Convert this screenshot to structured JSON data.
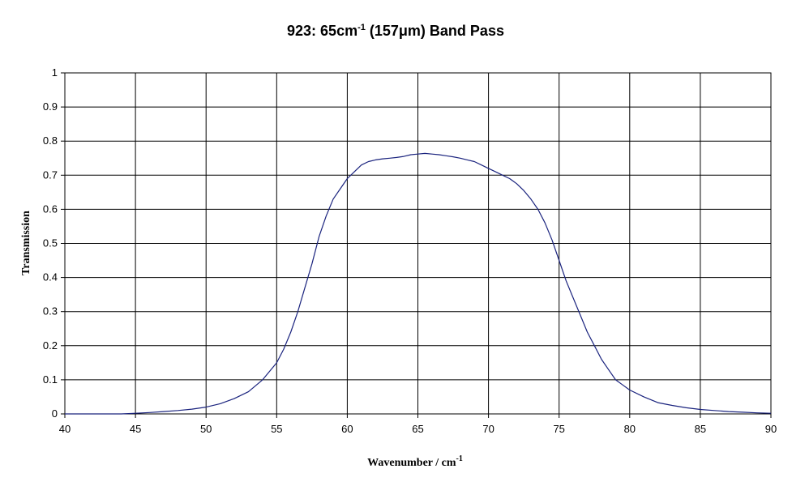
{
  "chart_data": {
    "type": "line",
    "title": {
      "prefix": "923: 65cm",
      "sup": "-1",
      "middle": " (157",
      "mu": "μ",
      "suffix": "m) Band Pass"
    },
    "xlabel": {
      "text": "Wavenumber / cm",
      "sup": "-1"
    },
    "ylabel": "Transmission",
    "xlim": [
      40,
      90
    ],
    "ylim": [
      0,
      1
    ],
    "x_ticks": [
      "40",
      "45",
      "50",
      "55",
      "60",
      "65",
      "70",
      "75",
      "80",
      "85",
      "90"
    ],
    "y_ticks": [
      "0",
      "0.1",
      "0.2",
      "0.3",
      "0.4",
      "0.5",
      "0.6",
      "0.7",
      "0.8",
      "0.9",
      "1"
    ],
    "grid": true,
    "legend": "none",
    "series": [
      {
        "color": "#1a237e",
        "x": [
          40,
          42,
          44,
          45,
          46,
          47,
          48,
          49,
          50,
          51,
          52,
          53,
          54,
          55,
          55.5,
          56,
          56.5,
          57,
          57.5,
          58,
          58.5,
          59,
          59.5,
          60,
          60.5,
          61,
          61.5,
          62,
          62.5,
          63,
          63.5,
          64,
          64.5,
          65,
          65.5,
          66,
          66.5,
          67,
          67.5,
          68,
          68.5,
          69,
          69.5,
          70,
          70.5,
          71,
          71.5,
          72,
          72.5,
          73,
          73.5,
          74,
          74.5,
          75,
          75.5,
          76,
          76.5,
          77,
          77.5,
          78,
          78.5,
          79,
          79.5,
          80,
          81,
          82,
          83,
          84,
          85,
          86,
          87,
          88,
          89,
          90
        ],
        "y": [
          0.0,
          0.0,
          0.0,
          0.002,
          0.004,
          0.007,
          0.01,
          0.014,
          0.02,
          0.03,
          0.045,
          0.065,
          0.1,
          0.15,
          0.19,
          0.24,
          0.3,
          0.37,
          0.44,
          0.52,
          0.58,
          0.63,
          0.66,
          0.69,
          0.71,
          0.73,
          0.74,
          0.745,
          0.748,
          0.75,
          0.752,
          0.755,
          0.76,
          0.762,
          0.764,
          0.762,
          0.76,
          0.757,
          0.754,
          0.75,
          0.745,
          0.74,
          0.73,
          0.72,
          0.71,
          0.7,
          0.69,
          0.675,
          0.655,
          0.63,
          0.6,
          0.56,
          0.51,
          0.45,
          0.39,
          0.34,
          0.29,
          0.24,
          0.2,
          0.16,
          0.13,
          0.1,
          0.085,
          0.07,
          0.05,
          0.033,
          0.025,
          0.018,
          0.013,
          0.01,
          0.007,
          0.005,
          0.003,
          0.002
        ]
      }
    ]
  }
}
